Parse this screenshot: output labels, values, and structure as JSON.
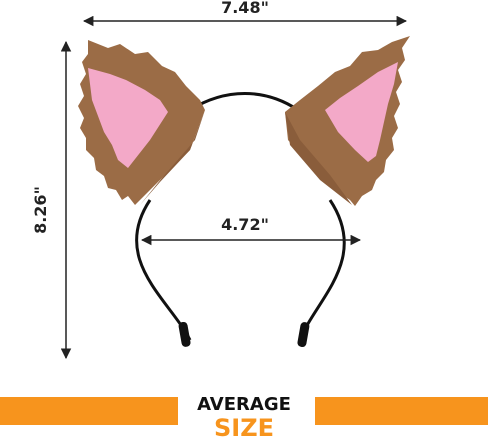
{
  "dimensions": {
    "width_label": "7.48\"",
    "height_label": "8.26\"",
    "inner_width_label": "4.72\""
  },
  "banner": {
    "line1": "AVERAGE",
    "line2": "SIZE"
  }
}
